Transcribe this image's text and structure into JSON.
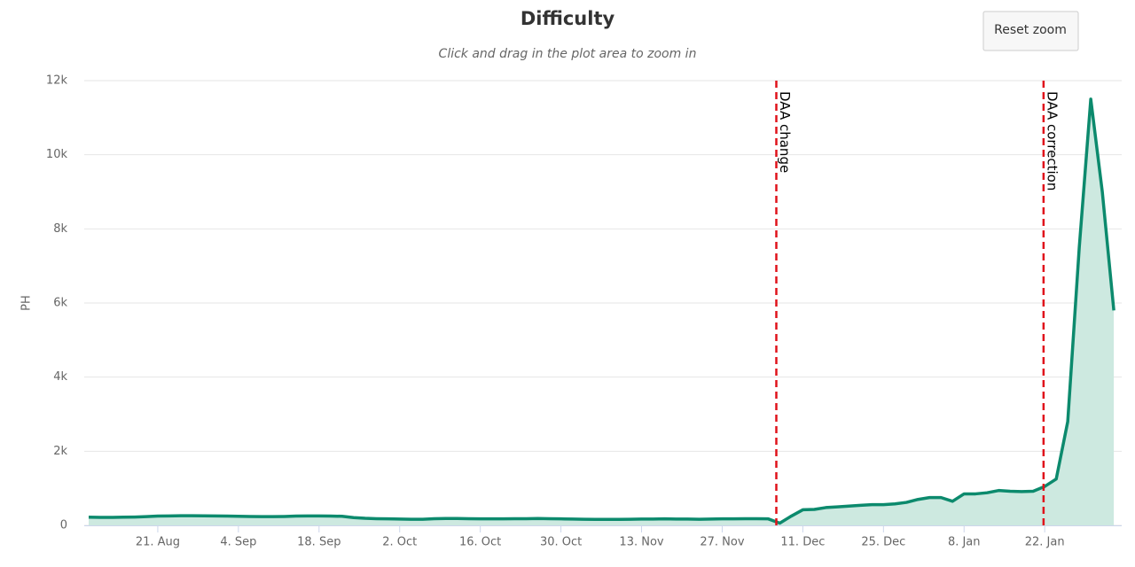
{
  "chart_data": {
    "type": "area",
    "title": "Difficulty",
    "subtitle": "Click and drag in the plot area to zoom in",
    "button": "Reset zoom",
    "y_label": "PH",
    "categories": [
      null,
      null,
      null,
      null,
      null,
      null,
      "21. Aug",
      null,
      null,
      null,
      null,
      null,
      null,
      "4. Sep",
      null,
      null,
      null,
      null,
      null,
      null,
      "18. Sep",
      null,
      null,
      null,
      null,
      null,
      null,
      "2. Oct",
      null,
      null,
      null,
      null,
      null,
      null,
      "16. Oct",
      null,
      null,
      null,
      null,
      null,
      null,
      "30. Oct",
      null,
      null,
      null,
      null,
      null,
      null,
      "13. Nov",
      null,
      null,
      null,
      null,
      null,
      null,
      "27. Nov",
      null,
      null,
      null,
      null,
      null,
      null,
      "11. Dec",
      null,
      null,
      null,
      null,
      null,
      null,
      "25. Dec",
      null,
      null,
      null,
      null,
      null,
      null,
      "8. Jan",
      null,
      null,
      null,
      null,
      null,
      null,
      "22. Jan",
      null,
      null,
      null,
      null,
      null,
      null
    ],
    "series": [
      {
        "name": "Difficulty",
        "color": "#0c8a6d",
        "fill": "#cde9e0",
        "values": [
          220,
          215,
          215,
          220,
          225,
          235,
          250,
          255,
          260,
          260,
          258,
          255,
          250,
          245,
          240,
          235,
          235,
          240,
          250,
          255,
          255,
          250,
          245,
          210,
          190,
          180,
          175,
          170,
          165,
          165,
          180,
          185,
          185,
          180,
          175,
          175,
          175,
          180,
          180,
          185,
          180,
          175,
          170,
          165,
          160,
          160,
          160,
          165,
          170,
          170,
          175,
          170,
          170,
          165,
          170,
          175,
          175,
          180,
          180,
          175,
          60,
          250,
          420,
          430,
          480,
          500,
          520,
          540,
          560,
          560,
          580,
          620,
          700,
          750,
          750,
          650,
          850,
          850,
          880,
          940,
          920,
          910,
          920,
          1050,
          1250,
          2800,
          7500,
          11500,
          9000,
          5800
        ]
      }
    ],
    "annotations": [
      {
        "label": "DAA change",
        "index": 59.7
      },
      {
        "label": "DAA correction",
        "index": 82.9
      }
    ],
    "ylim": [
      0,
      12000
    ],
    "yticks": [
      0,
      {
        "value": 2000,
        "label": "2k"
      },
      {
        "value": 4000,
        "label": "4k"
      },
      {
        "value": 6000,
        "label": "6k"
      },
      {
        "value": 8000,
        "label": "8k"
      },
      {
        "value": 10000,
        "label": "10k"
      },
      {
        "value": 12000,
        "label": "12k"
      }
    ],
    "grid": true
  }
}
